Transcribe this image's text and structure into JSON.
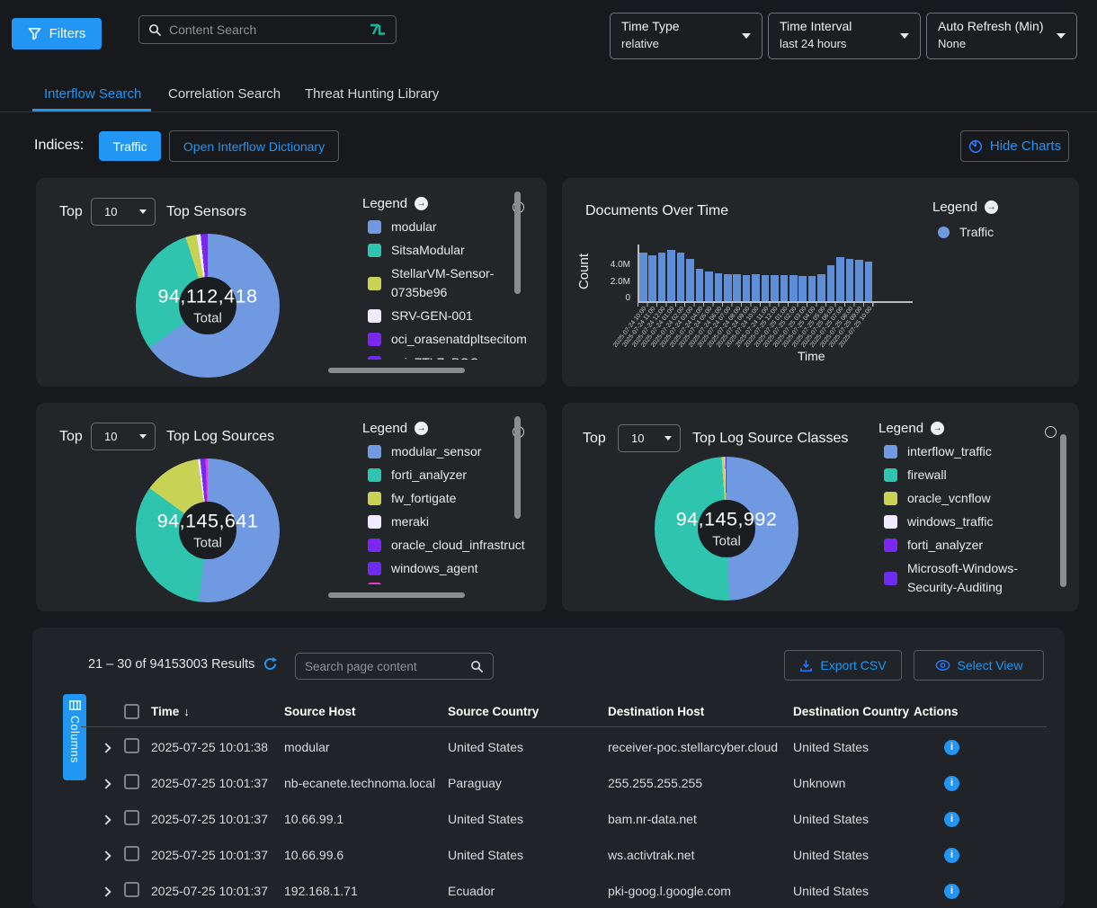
{
  "topbar": {
    "filters_button": "Filters",
    "content_search_placeholder": "Content Search",
    "time_type": {
      "label": "Time Type",
      "value": "relative"
    },
    "time_interval": {
      "label": "Time Interval",
      "value": "last 24 hours"
    },
    "auto_refresh": {
      "label": "Auto Refresh (Min)",
      "value": "None"
    }
  },
  "tabs": [
    {
      "label": "Interflow Search",
      "active": true
    },
    {
      "label": "Correlation Search",
      "active": false
    },
    {
      "label": "Threat Hunting Library",
      "active": false
    }
  ],
  "indices_bar": {
    "label": "Indices:",
    "traffic_button": "Traffic",
    "dictionary_button": "Open Interflow Dictionary",
    "hide_charts_button": "Hide Charts"
  },
  "colors": {
    "accent_blue": "#2196f3",
    "bar_blue": "#5f8ed8",
    "panel_bg": "#232629",
    "page_bg": "#17191c"
  },
  "chart_data": [
    {
      "type": "pie",
      "title": "Top Sensors",
      "top_label": "Top",
      "top_value": "10",
      "center_total": "94,112,418",
      "center_label": "Total",
      "legend_title": "Legend",
      "legend_position": "right",
      "slices": [
        {
          "label": "modular",
          "color": "#6f9ae2",
          "pct": 65.0
        },
        {
          "label": "SitsaModular",
          "color": "#2ec4ad",
          "pct": 30.0
        },
        {
          "label": "StellarVM-Sensor-0735be96",
          "color": "#c8d355",
          "pct": 2.5
        },
        {
          "label": "SRV-GEN-001",
          "color": "#f1e9fd",
          "pct": 0.9
        },
        {
          "label": "oci_orasenatdpltsecitom",
          "color": "#7a28f0",
          "pct": 0.9
        },
        {
          "label": "oci_ZTLZ_POC",
          "color": "#6c2bee",
          "pct": 0.7
        }
      ]
    },
    {
      "type": "bar",
      "title": "Documents Over Time",
      "legend_title": "Legend",
      "xlabel": "Time",
      "ylabel": "Count",
      "yticks": [
        "0",
        "2.0M",
        "4.0M"
      ],
      "ylim_millions": [
        0,
        5.8
      ],
      "series": [
        {
          "name": "Traffic",
          "color": "#5f8ed8"
        }
      ],
      "categories": [
        "2025-07-24 10:00",
        "2025-07-24 11:00",
        "2025-07-24 12:00",
        "2025-07-24 01:00",
        "2025-07-24 02:00",
        "2025-07-24 03:00",
        "2025-07-24 04:00",
        "2025-07-24 05:00",
        "2025-07-24 06:00",
        "2025-07-24 07:00",
        "2025-07-24 08:00",
        "2025-07-24 09:00",
        "2025-07-24 10:00",
        "2025-07-24 11:00",
        "2025-07-25 12:00",
        "2025-07-25 01:00",
        "2025-07-25 02:00",
        "2025-07-25 03:00",
        "2025-07-25 04:00",
        "2025-07-25 05:00",
        "2025-07-25 06:00",
        "2025-07-25 07:00",
        "2025-07-25 08:00",
        "2025-07-25 09:00",
        "2025-07-25 10:00"
      ],
      "values_millions": [
        5.5,
        5.2,
        5.5,
        5.8,
        5.5,
        4.8,
        3.7,
        3.4,
        3.2,
        3.1,
        3.1,
        3.0,
        3.05,
        3.0,
        3.0,
        2.95,
        3.0,
        2.9,
        2.85,
        3.05,
        4.1,
        5.0,
        4.85,
        4.7,
        4.5
      ]
    },
    {
      "type": "pie",
      "title": "Top Log Sources",
      "top_label": "Top",
      "top_value": "10",
      "center_total": "94,145,641",
      "center_label": "Total",
      "legend_title": "Legend",
      "legend_position": "right",
      "slices": [
        {
          "label": "modular_sensor",
          "color": "#6f9ae2",
          "pct": 52.0
        },
        {
          "label": "forti_analyzer",
          "color": "#2ec4ad",
          "pct": 33.0
        },
        {
          "label": "fw_fortigate",
          "color": "#c8d355",
          "pct": 12.8
        },
        {
          "label": "meraki",
          "color": "#f1e9fd",
          "pct": 0.5
        },
        {
          "label": "oracle_cloud_infrastruct",
          "color": "#7a28f0",
          "pct": 0.7
        },
        {
          "label": "windows_agent",
          "color": "#6c2bee",
          "pct": 0.5
        },
        {
          "label": "",
          "color": "#e83ad0",
          "pct": 0.5
        }
      ]
    },
    {
      "type": "pie",
      "title": "Top Log Source Classes",
      "top_label": "Top",
      "top_value": "10",
      "center_total": "94,145,992",
      "center_label": "Total",
      "legend_title": "Legend",
      "legend_position": "right",
      "slices": [
        {
          "label": "interflow_traffic",
          "color": "#6f9ae2",
          "pct": 49.4
        },
        {
          "label": "firewall",
          "color": "#2ec4ad",
          "pct": 49.5
        },
        {
          "label": "oracle_vcnflow",
          "color": "#c8d355",
          "pct": 0.6
        },
        {
          "label": "windows_traffic",
          "color": "#f1e9fd",
          "pct": 0.2
        },
        {
          "label": "forti_analyzer",
          "color": "#7a28f0",
          "pct": 0.15
        },
        {
          "label": "Microsoft-Windows-Security-Auditing",
          "color": "#6c2bee",
          "pct": 0.15
        }
      ]
    }
  ],
  "results": {
    "summary": "21 – 30 of 94153003 Results",
    "search_placeholder": "Search page content",
    "export_button": "Export CSV",
    "select_view_button": "Select View",
    "columns_button": "Columns",
    "table": {
      "headers": [
        "Time",
        "Source Host",
        "Source Country",
        "Destination Host",
        "Destination Country",
        "Actions"
      ],
      "sort_column": "Time",
      "sort_direction": "desc",
      "rows": [
        {
          "time": "2025-07-25 10:01:38",
          "source_host": "modular",
          "source_country": "United States",
          "destination_host": "receiver-poc.stellarcyber.cloud",
          "destination_country": "United States"
        },
        {
          "time": "2025-07-25 10:01:37",
          "source_host": "nb-ecanete.technoma.local",
          "source_country": "Paraguay",
          "destination_host": "255.255.255.255",
          "destination_country": "Unknown"
        },
        {
          "time": "2025-07-25 10:01:37",
          "source_host": "10.66.99.1",
          "source_country": "United States",
          "destination_host": "bam.nr-data.net",
          "destination_country": "United States"
        },
        {
          "time": "2025-07-25 10:01:37",
          "source_host": "10.66.99.6",
          "source_country": "United States",
          "destination_host": "ws.activtrak.net",
          "destination_country": "United States"
        },
        {
          "time": "2025-07-25 10:01:37",
          "source_host": "192.168.1.71",
          "source_country": "Ecuador",
          "destination_host": "pki-goog.l.google.com",
          "destination_country": "United States"
        }
      ]
    }
  }
}
